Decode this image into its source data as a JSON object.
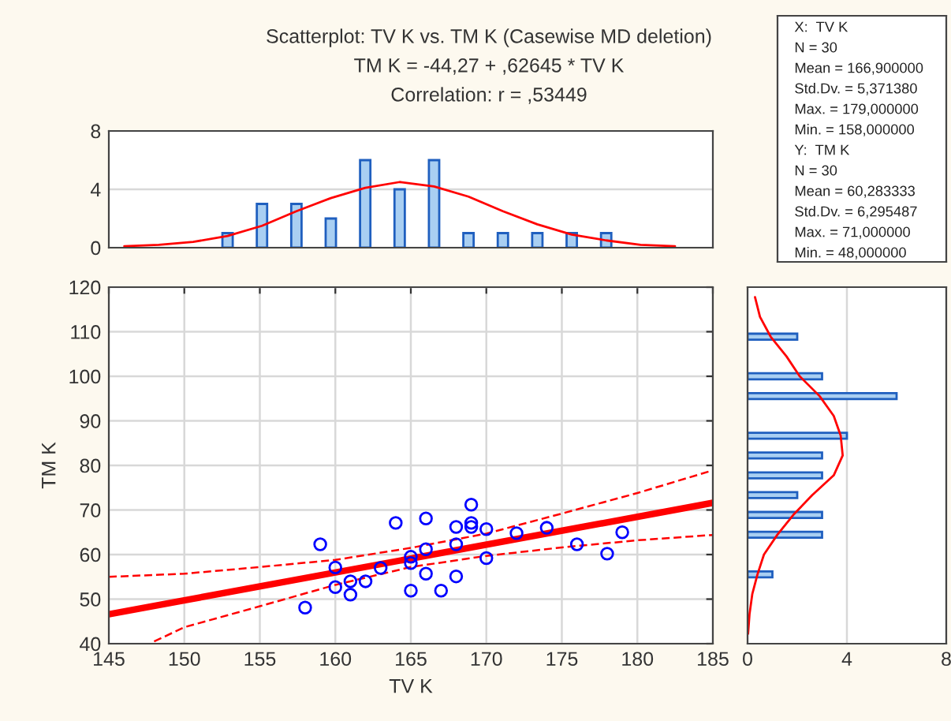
{
  "chart_data": [
    {
      "type": "bar",
      "title": "Scatterplot: TV K vs. TM K (Casewise MD deletion)",
      "annotations": [
        "TM K = -44,27 + ,62645 * TV K",
        "Correlation: r = ,53449"
      ],
      "categories": [
        null,
        null,
        null,
        null,
        null,
        null,
        null,
        null,
        null,
        null,
        null,
        null,
        null,
        null,
        null,
        null,
        null
      ],
      "series": [
        {
          "type": "bar",
          "color": "#a9cff2",
          "values": [
            null,
            null,
            null,
            1,
            3,
            3,
            2,
            6,
            4,
            6,
            1,
            1,
            1,
            1,
            1,
            null,
            null
          ]
        },
        {
          "type": "line",
          "color": "#ff0000",
          "values": [
            0.1,
            0.2,
            0.4,
            0.8,
            1.5,
            2.5,
            3.4,
            4.1,
            4.5,
            4.2,
            3.5,
            2.5,
            1.6,
            0.9,
            0.5,
            0.2,
            0.1
          ]
        }
      ],
      "ylim": [
        0,
        8
      ],
      "yticks": [
        0,
        4,
        8
      ],
      "grid": "y",
      "tick_labels": "y"
    },
    {
      "type": "other",
      "annotations": [
        "X:  TV K",
        "N = 30",
        "Mean = 166,900000",
        "Std.Dv. = 5,371380",
        "Max. = 179,000000",
        "Min. = 158,000000",
        "Y:  TM K",
        "N = 30",
        "Mean = 60,283333",
        "Std.Dv. = 6,295487",
        "Max. = 71,000000",
        "Min. = 48,000000"
      ]
    },
    {
      "type": "scatter",
      "xlabel": "TV K",
      "ylabel": "TM K",
      "series": [
        {
          "type": "scatter",
          "color": "#0000ff",
          "marker": "circle",
          "x": [
            158,
            159,
            160,
            160,
            161,
            161,
            162,
            163,
            164,
            165,
            165,
            165,
            166,
            166,
            166,
            167,
            168,
            168,
            168,
            169,
            169,
            169,
            170,
            170,
            172,
            174,
            176,
            178,
            179
          ],
          "values": [
            48.1,
            62.3,
            57.1,
            52.7,
            54.0,
            51.0,
            54.0,
            57.0,
            67.1,
            59.5,
            58.1,
            51.9,
            68.1,
            61.2,
            55.7,
            51.9,
            66.2,
            62.3,
            55.1,
            71.2,
            67.1,
            66.2,
            65.7,
            59.2,
            64.8,
            66.0,
            62.3,
            60.2,
            65.0
          ]
        },
        {
          "type": "line",
          "color": "#ff0000",
          "line_style": "solid",
          "x": [
            145,
            185
          ],
          "values": [
            46.6,
            71.6
          ]
        },
        {
          "type": "line",
          "color": "#ff0000",
          "line_style": "dashed",
          "x": [
            145,
            150,
            155,
            160,
            165,
            170,
            175,
            180,
            185
          ],
          "values": [
            55.0,
            55.7,
            57.2,
            58.8,
            61.5,
            64.7,
            69.2,
            73.8,
            78.9
          ]
        },
        {
          "type": "line",
          "color": "#ff0000",
          "line_style": "dashed",
          "x": [
            148,
            150,
            155,
            160,
            165,
            170,
            175,
            180,
            185
          ],
          "values": [
            40.5,
            43.7,
            48.4,
            53.2,
            57.2,
            59.7,
            61.6,
            63.2,
            64.4
          ]
        }
      ],
      "xlim": [
        145,
        185
      ],
      "xticks": [
        145,
        150,
        155,
        160,
        165,
        170,
        175,
        180,
        185
      ],
      "ylim": [
        40,
        120
      ],
      "yticks": [
        40,
        50,
        60,
        70,
        80,
        90,
        100,
        110,
        120
      ],
      "grid": true
    },
    {
      "type": "bar",
      "orientation": "horizontal",
      "categories": [
        null,
        null,
        null,
        null,
        null,
        null,
        null,
        null,
        null,
        null,
        null,
        null,
        null,
        null,
        null,
        null,
        null,
        null
      ],
      "series": [
        {
          "type": "bar",
          "color": "#a9cff2",
          "values": [
            null,
            null,
            2,
            null,
            3,
            6,
            null,
            4,
            3,
            3,
            2,
            3,
            3,
            null,
            1,
            null,
            null,
            null
          ]
        },
        {
          "type": "line",
          "color": "#ff0000",
          "values": [
            0.3,
            0.5,
            0.93,
            1.57,
            2.1,
            2.9,
            3.47,
            3.75,
            3.83,
            3.47,
            2.6,
            1.84,
            1.2,
            0.66,
            0.4,
            0.19,
            0.08,
            0.02
          ]
        }
      ],
      "xlim": [
        0,
        8
      ],
      "xticks": [
        0,
        4,
        8
      ],
      "grid": "x",
      "tick_labels": "x"
    }
  ]
}
